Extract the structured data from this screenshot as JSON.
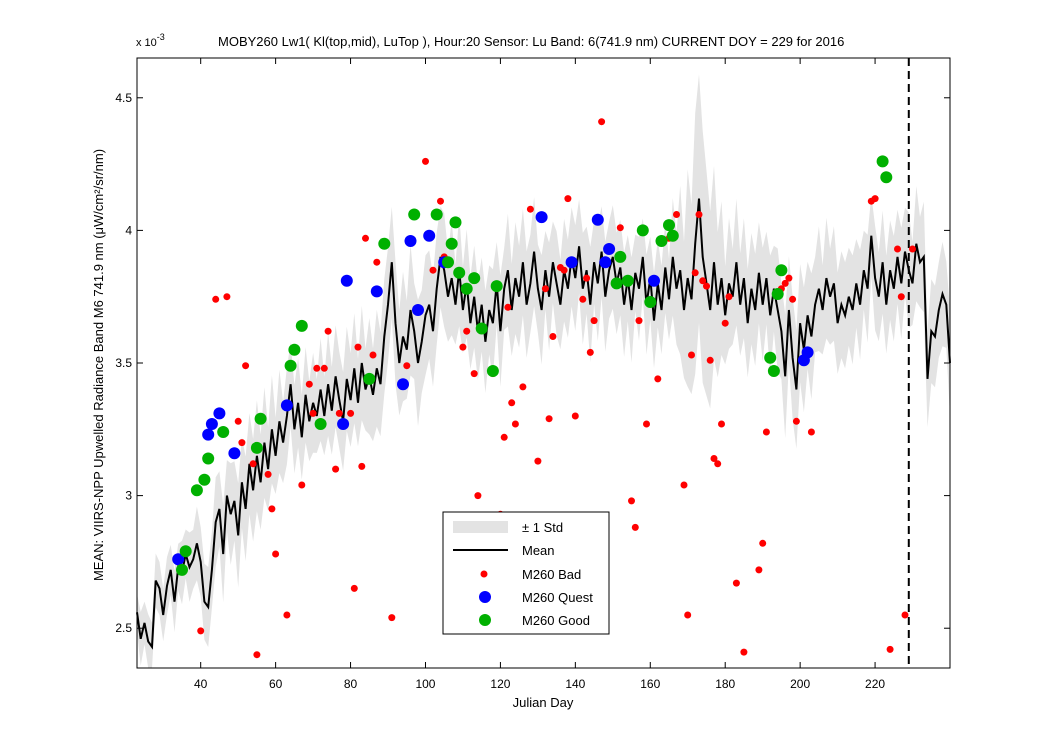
{
  "chart_data": {
    "type": "scatter",
    "title": "MOBY260   Lw1( Kl(top,mid), LuTop ),   Hour:20 Sensor: Lu Band: 6(741.9 nm)   CURRENT DOY = 229 for 2016",
    "exponent_label": "x 10",
    "exponent_power": "-3",
    "xlabel": "Julian Day",
    "ylabel": "MEAN: VIIRS-NPP Upwelled Radiance Band M6 741.9 nm (μW/cm²/sr/nm)",
    "xlim": [
      23,
      240
    ],
    "ylim": [
      2.35,
      4.65
    ],
    "y_unit_multiplier": 0.001,
    "x_ticks": [
      40,
      60,
      80,
      100,
      120,
      140,
      160,
      180,
      200,
      220
    ],
    "y_ticks": [
      2.5,
      3,
      3.5,
      4,
      4.5
    ],
    "y_tick_labels": [
      "2.5",
      "3",
      "3.5",
      "4",
      "4.5"
    ],
    "grid": false,
    "current_doy": 229,
    "legend_position": "bottom-center",
    "legend": {
      "std": "± 1 Std",
      "mean": "Mean",
      "bad": "M260 Bad",
      "quest": "M260 Quest",
      "good": "M260 Good"
    },
    "colors": {
      "std": "#e3e3e3",
      "mean": "#000000",
      "bad": "#ff0000",
      "quest": "#0000ff",
      "good": "#00b000",
      "doy_line": "#000000"
    },
    "mean_series": [
      [
        23,
        2.56
      ],
      [
        24,
        2.46
      ],
      [
        25,
        2.52
      ],
      [
        26,
        2.45
      ],
      [
        27,
        2.43
      ],
      [
        28,
        2.68
      ],
      [
        29,
        2.65
      ],
      [
        30,
        2.55
      ],
      [
        31,
        2.66
      ],
      [
        32,
        2.72
      ],
      [
        33,
        2.6
      ],
      [
        34,
        2.73
      ],
      [
        35,
        2.71
      ],
      [
        36,
        2.78
      ],
      [
        37,
        2.73
      ],
      [
        38,
        2.76
      ],
      [
        39,
        2.82
      ],
      [
        40,
        2.75
      ],
      [
        41,
        2.6
      ],
      [
        42,
        2.58
      ],
      [
        43,
        2.72
      ],
      [
        44,
        2.9
      ],
      [
        45,
        2.95
      ],
      [
        46,
        2.78
      ],
      [
        47,
        3.0
      ],
      [
        48,
        2.93
      ],
      [
        49,
        2.98
      ],
      [
        50,
        2.85
      ],
      [
        51,
        3.05
      ],
      [
        52,
        2.95
      ],
      [
        53,
        3.12
      ],
      [
        54,
        3.02
      ],
      [
        55,
        3.15
      ],
      [
        56,
        3.05
      ],
      [
        57,
        3.2
      ],
      [
        58,
        3.1
      ],
      [
        59,
        3.25
      ],
      [
        60,
        3.15
      ],
      [
        61,
        3.28
      ],
      [
        62,
        3.2
      ],
      [
        63,
        3.3
      ],
      [
        64,
        3.42
      ],
      [
        65,
        3.25
      ],
      [
        66,
        3.35
      ],
      [
        67,
        3.22
      ],
      [
        68,
        3.38
      ],
      [
        69,
        3.28
      ],
      [
        70,
        3.35
      ],
      [
        71,
        3.3
      ],
      [
        72,
        3.4
      ],
      [
        73,
        3.3
      ],
      [
        74,
        3.42
      ],
      [
        75,
        3.32
      ],
      [
        76,
        3.45
      ],
      [
        77,
        3.36
      ],
      [
        78,
        3.28
      ],
      [
        79,
        3.44
      ],
      [
        80,
        3.36
      ],
      [
        81,
        3.48
      ],
      [
        82,
        3.35
      ],
      [
        83,
        3.5
      ],
      [
        84,
        3.4
      ],
      [
        85,
        3.45
      ],
      [
        86,
        3.38
      ],
      [
        87,
        3.48
      ],
      [
        88,
        3.42
      ],
      [
        89,
        3.6
      ],
      [
        90,
        3.72
      ],
      [
        91,
        3.88
      ],
      [
        92,
        3.65
      ],
      [
        93,
        3.5
      ],
      [
        94,
        3.6
      ],
      [
        95,
        3.55
      ],
      [
        96,
        3.7
      ],
      [
        97,
        3.62
      ],
      [
        98,
        3.5
      ],
      [
        99,
        3.58
      ],
      [
        100,
        3.68
      ],
      [
        101,
        3.72
      ],
      [
        102,
        3.62
      ],
      [
        103,
        3.78
      ],
      [
        104,
        3.9
      ],
      [
        105,
        3.85
      ],
      [
        106,
        3.75
      ],
      [
        107,
        3.82
      ],
      [
        108,
        3.72
      ],
      [
        109,
        3.85
      ],
      [
        110,
        3.7
      ],
      [
        111,
        3.8
      ],
      [
        112,
        3.65
      ],
      [
        113,
        3.75
      ],
      [
        114,
        3.62
      ],
      [
        115,
        3.72
      ],
      [
        116,
        3.58
      ],
      [
        117,
        3.7
      ],
      [
        118,
        3.65
      ],
      [
        119,
        3.8
      ],
      [
        120,
        3.62
      ],
      [
        121,
        3.78
      ],
      [
        122,
        3.85
      ],
      [
        123,
        3.7
      ],
      [
        124,
        3.82
      ],
      [
        125,
        3.75
      ],
      [
        126,
        3.88
      ],
      [
        127,
        3.72
      ],
      [
        128,
        3.8
      ],
      [
        129,
        3.92
      ],
      [
        130,
        3.78
      ],
      [
        131,
        3.7
      ],
      [
        132,
        3.85
      ],
      [
        133,
        3.75
      ],
      [
        134,
        3.88
      ],
      [
        135,
        3.8
      ],
      [
        136,
        3.72
      ],
      [
        137,
        3.85
      ],
      [
        138,
        3.78
      ],
      [
        139,
        3.9
      ],
      [
        140,
        3.82
      ],
      [
        141,
        3.94
      ],
      [
        142,
        3.78
      ],
      [
        143,
        3.85
      ],
      [
        144,
        3.72
      ],
      [
        145,
        3.88
      ],
      [
        146,
        3.8
      ],
      [
        147,
        3.92
      ],
      [
        148,
        3.75
      ],
      [
        149,
        3.85
      ],
      [
        150,
        3.9
      ],
      [
        151,
        3.8
      ],
      [
        152,
        3.86
      ],
      [
        153,
        3.72
      ],
      [
        154,
        3.82
      ],
      [
        155,
        3.7
      ],
      [
        156,
        3.84
      ],
      [
        157,
        3.78
      ],
      [
        158,
        3.9
      ],
      [
        159,
        3.72
      ],
      [
        160,
        3.82
      ],
      [
        161,
        3.66
      ],
      [
        162,
        3.8
      ],
      [
        163,
        3.7
      ],
      [
        164,
        3.86
      ],
      [
        165,
        3.74
      ],
      [
        166,
        3.9
      ],
      [
        167,
        3.78
      ],
      [
        168,
        3.85
      ],
      [
        169,
        3.7
      ],
      [
        170,
        3.82
      ],
      [
        171,
        3.74
      ],
      [
        172,
        3.95
      ],
      [
        173,
        4.12
      ],
      [
        174,
        3.9
      ],
      [
        175,
        3.8
      ],
      [
        176,
        3.7
      ],
      [
        177,
        3.88
      ],
      [
        178,
        3.72
      ],
      [
        179,
        3.82
      ],
      [
        180,
        3.68
      ],
      [
        181,
        3.8
      ],
      [
        182,
        3.75
      ],
      [
        183,
        3.88
      ],
      [
        184,
        3.72
      ],
      [
        185,
        3.82
      ],
      [
        186,
        3.65
      ],
      [
        187,
        3.78
      ],
      [
        188,
        3.7
      ],
      [
        189,
        3.84
      ],
      [
        190,
        3.72
      ],
      [
        191,
        3.82
      ],
      [
        192,
        3.68
      ],
      [
        193,
        3.78
      ],
      [
        194,
        3.7
      ],
      [
        195,
        3.62
      ],
      [
        196,
        3.45
      ],
      [
        197,
        3.7
      ],
      [
        198,
        3.52
      ],
      [
        199,
        3.4
      ],
      [
        200,
        3.65
      ],
      [
        201,
        3.55
      ],
      [
        202,
        3.68
      ],
      [
        203,
        3.6
      ],
      [
        204,
        3.72
      ],
      [
        205,
        3.78
      ],
      [
        206,
        3.7
      ],
      [
        207,
        3.82
      ],
      [
        208,
        3.75
      ],
      [
        209,
        3.8
      ],
      [
        210,
        3.65
      ],
      [
        211,
        3.72
      ],
      [
        212,
        3.68
      ],
      [
        213,
        3.75
      ],
      [
        214,
        3.7
      ],
      [
        215,
        3.8
      ],
      [
        216,
        3.72
      ],
      [
        217,
        3.85
      ],
      [
        218,
        3.78
      ],
      [
        219,
        3.98
      ],
      [
        220,
        3.82
      ],
      [
        221,
        3.75
      ],
      [
        222,
        3.88
      ],
      [
        223,
        3.72
      ],
      [
        224,
        3.85
      ],
      [
        225,
        3.78
      ],
      [
        226,
        3.9
      ],
      [
        227,
        3.8
      ],
      [
        228,
        3.92
      ],
      [
        229,
        3.85
      ],
      [
        230,
        3.8
      ],
      [
        231,
        3.95
      ],
      [
        232,
        3.88
      ],
      [
        233,
        3.9
      ],
      [
        234,
        3.44
      ],
      [
        235,
        3.62
      ],
      [
        236,
        3.6
      ],
      [
        237,
        3.7
      ],
      [
        238,
        3.76
      ],
      [
        239,
        3.72
      ],
      [
        240,
        3.5
      ]
    ],
    "std_spread": [
      [
        23,
        0.1
      ],
      [
        35,
        0.12
      ],
      [
        45,
        0.18
      ],
      [
        55,
        0.22
      ],
      [
        65,
        0.18
      ],
      [
        75,
        0.2
      ],
      [
        85,
        0.22
      ],
      [
        95,
        0.25
      ],
      [
        105,
        0.22
      ],
      [
        115,
        0.2
      ],
      [
        125,
        0.22
      ],
      [
        135,
        0.2
      ],
      [
        145,
        0.22
      ],
      [
        155,
        0.2
      ],
      [
        165,
        0.18
      ],
      [
        173,
        0.55
      ],
      [
        180,
        0.25
      ],
      [
        190,
        0.22
      ],
      [
        200,
        0.25
      ],
      [
        210,
        0.22
      ],
      [
        220,
        0.2
      ],
      [
        230,
        0.22
      ],
      [
        240,
        0.2
      ]
    ],
    "bad_points": [
      [
        40,
        2.49
      ],
      [
        44,
        3.74
      ],
      [
        47,
        3.75
      ],
      [
        50,
        3.28
      ],
      [
        51,
        3.2
      ],
      [
        52,
        3.49
      ],
      [
        54,
        3.12
      ],
      [
        55,
        2.4
      ],
      [
        58,
        3.08
      ],
      [
        59,
        2.95
      ],
      [
        60,
        2.78
      ],
      [
        63,
        2.55
      ],
      [
        67,
        3.04
      ],
      [
        69,
        3.42
      ],
      [
        70,
        3.31
      ],
      [
        71,
        3.48
      ],
      [
        73,
        3.48
      ],
      [
        74,
        3.62
      ],
      [
        76,
        3.1
      ],
      [
        77,
        3.31
      ],
      [
        80,
        3.31
      ],
      [
        81,
        2.65
      ],
      [
        82,
        3.56
      ],
      [
        83,
        3.11
      ],
      [
        84,
        3.97
      ],
      [
        86,
        3.53
      ],
      [
        87,
        3.88
      ],
      [
        91,
        2.54
      ],
      [
        95,
        3.49
      ],
      [
        100,
        4.26
      ],
      [
        102,
        3.85
      ],
      [
        104,
        4.11
      ],
      [
        105,
        3.9
      ],
      [
        110,
        3.56
      ],
      [
        111,
        3.62
      ],
      [
        113,
        3.46
      ],
      [
        114,
        3.0
      ],
      [
        118,
        3.46
      ],
      [
        120,
        2.93
      ],
      [
        121,
        3.22
      ],
      [
        122,
        3.71
      ],
      [
        123,
        3.35
      ],
      [
        124,
        3.27
      ],
      [
        126,
        3.41
      ],
      [
        128,
        4.08
      ],
      [
        130,
        3.13
      ],
      [
        132,
        3.78
      ],
      [
        133,
        3.29
      ],
      [
        134,
        3.6
      ],
      [
        136,
        3.86
      ],
      [
        137,
        3.85
      ],
      [
        138,
        4.12
      ],
      [
        140,
        3.3
      ],
      [
        142,
        3.74
      ],
      [
        143,
        3.82
      ],
      [
        144,
        3.54
      ],
      [
        145,
        3.66
      ],
      [
        147,
        4.41
      ],
      [
        152,
        4.01
      ],
      [
        155,
        2.98
      ],
      [
        156,
        2.88
      ],
      [
        157,
        3.66
      ],
      [
        159,
        3.27
      ],
      [
        161,
        3.81
      ],
      [
        162,
        3.44
      ],
      [
        165,
        3.97
      ],
      [
        167,
        4.06
      ],
      [
        169,
        3.04
      ],
      [
        170,
        2.55
      ],
      [
        171,
        3.53
      ],
      [
        172,
        3.84
      ],
      [
        173,
        4.06
      ],
      [
        174,
        3.81
      ],
      [
        175,
        3.79
      ],
      [
        176,
        3.51
      ],
      [
        177,
        3.14
      ],
      [
        178,
        3.12
      ],
      [
        179,
        3.27
      ],
      [
        180,
        3.65
      ],
      [
        181,
        3.75
      ],
      [
        183,
        2.67
      ],
      [
        185,
        2.41
      ],
      [
        189,
        2.72
      ],
      [
        190,
        2.82
      ],
      [
        191,
        3.24
      ],
      [
        195,
        3.78
      ],
      [
        196,
        3.8
      ],
      [
        197,
        3.82
      ],
      [
        198,
        3.74
      ],
      [
        199,
        3.28
      ],
      [
        203,
        3.24
      ],
      [
        219,
        4.11
      ],
      [
        220,
        4.12
      ],
      [
        224,
        2.42
      ],
      [
        226,
        3.93
      ],
      [
        227,
        3.75
      ],
      [
        228,
        2.55
      ],
      [
        230,
        3.93
      ]
    ],
    "quest_points": [
      [
        34,
        2.76
      ],
      [
        42,
        3.23
      ],
      [
        43,
        3.27
      ],
      [
        45,
        3.31
      ],
      [
        49,
        3.16
      ],
      [
        63,
        3.34
      ],
      [
        78,
        3.27
      ],
      [
        79,
        3.81
      ],
      [
        87,
        3.77
      ],
      [
        94,
        3.42
      ],
      [
        96,
        3.96
      ],
      [
        98,
        3.7
      ],
      [
        101,
        3.98
      ],
      [
        105,
        3.88
      ],
      [
        131,
        4.05
      ],
      [
        139,
        3.88
      ],
      [
        146,
        4.04
      ],
      [
        148,
        3.88
      ],
      [
        149,
        3.93
      ],
      [
        161,
        3.81
      ],
      [
        201,
        3.51
      ],
      [
        202,
        3.54
      ]
    ],
    "good_points": [
      [
        35,
        2.72
      ],
      [
        36,
        2.79
      ],
      [
        39,
        3.02
      ],
      [
        41,
        3.06
      ],
      [
        42,
        3.14
      ],
      [
        46,
        3.24
      ],
      [
        55,
        3.18
      ],
      [
        56,
        3.29
      ],
      [
        64,
        3.49
      ],
      [
        65,
        3.55
      ],
      [
        67,
        3.64
      ],
      [
        72,
        3.27
      ],
      [
        85,
        3.44
      ],
      [
        89,
        3.95
      ],
      [
        97,
        4.06
      ],
      [
        103,
        4.06
      ],
      [
        106,
        3.88
      ],
      [
        107,
        3.95
      ],
      [
        108,
        4.03
      ],
      [
        109,
        3.84
      ],
      [
        111,
        3.78
      ],
      [
        113,
        3.82
      ],
      [
        115,
        3.63
      ],
      [
        118,
        3.47
      ],
      [
        119,
        3.79
      ],
      [
        151,
        3.8
      ],
      [
        152,
        3.9
      ],
      [
        154,
        3.81
      ],
      [
        158,
        4.0
      ],
      [
        160,
        3.73
      ],
      [
        163,
        3.96
      ],
      [
        165,
        4.02
      ],
      [
        166,
        3.98
      ],
      [
        192,
        3.52
      ],
      [
        193,
        3.47
      ],
      [
        194,
        3.76
      ],
      [
        195,
        3.85
      ],
      [
        222,
        4.26
      ],
      [
        223,
        4.2
      ]
    ]
  }
}
